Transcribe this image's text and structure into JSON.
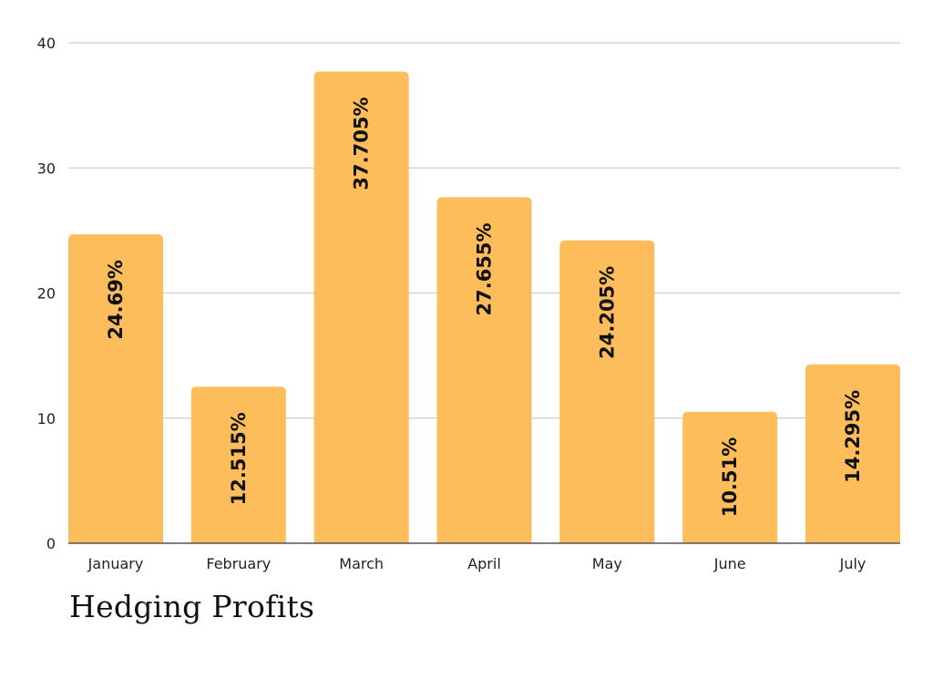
{
  "chart_data": {
    "type": "bar",
    "title": "Hedging Profits",
    "xlabel": "",
    "ylabel": "",
    "categories": [
      "January",
      "February",
      "March",
      "April",
      "May",
      "June",
      "July"
    ],
    "values": [
      24.69,
      12.515,
      37.705,
      27.655,
      24.205,
      10.51,
      14.295
    ],
    "data_labels": [
      "24.69%",
      "12.515%",
      "37.705%",
      "27.655%",
      "24.205%",
      "10.51%",
      "14.295%"
    ],
    "ylim": [
      0,
      40
    ],
    "yticks": [
      "0",
      "10",
      "20",
      "30",
      "40"
    ],
    "grid": true,
    "legend": "none",
    "bar_color": "#FDBD5A",
    "grid_color": "#CCCCCC",
    "axis_color": "#555555"
  }
}
